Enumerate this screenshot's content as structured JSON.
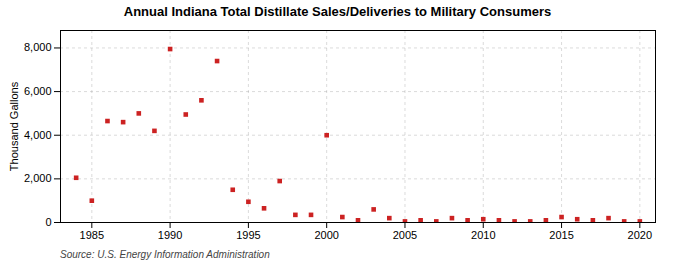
{
  "chart_data": {
    "type": "scatter",
    "title": "Annual Indiana Total Distillate Sales/Deliveries to Military Consumers",
    "ylabel": "Thousand Gallons",
    "source": "Source: U.S. Energy Information Administration",
    "x": [
      1984,
      1985,
      1986,
      1987,
      1988,
      1989,
      1990,
      1991,
      1992,
      1993,
      1994,
      1995,
      1996,
      1997,
      1998,
      1999,
      2000,
      2001,
      2002,
      2003,
      2004,
      2005,
      2006,
      2007,
      2008,
      2009,
      2010,
      2011,
      2012,
      2013,
      2014,
      2015,
      2016,
      2017,
      2018,
      2019,
      2020
    ],
    "values": [
      2050,
      1000,
      4650,
      4600,
      5000,
      4200,
      7950,
      4950,
      5600,
      7400,
      1500,
      950,
      650,
      1900,
      350,
      350,
      4000,
      250,
      100,
      600,
      200,
      50,
      100,
      50,
      200,
      100,
      150,
      100,
      50,
      50,
      100,
      250,
      150,
      100,
      200,
      50,
      50
    ],
    "color": "#cc2222",
    "marker": "square",
    "xlim": [
      1983,
      2021
    ],
    "ylim": [
      0,
      8800
    ],
    "xticks": [
      1985,
      1990,
      1995,
      2000,
      2005,
      2010,
      2015,
      2020
    ],
    "yticks": [
      0,
      {
        "value": 2000,
        "label": "2,000"
      },
      {
        "value": 4000,
        "label": "4,000"
      },
      {
        "value": 6000,
        "label": "6,000"
      },
      {
        "value": 8000,
        "label": "8,000"
      }
    ],
    "grid": true
  }
}
